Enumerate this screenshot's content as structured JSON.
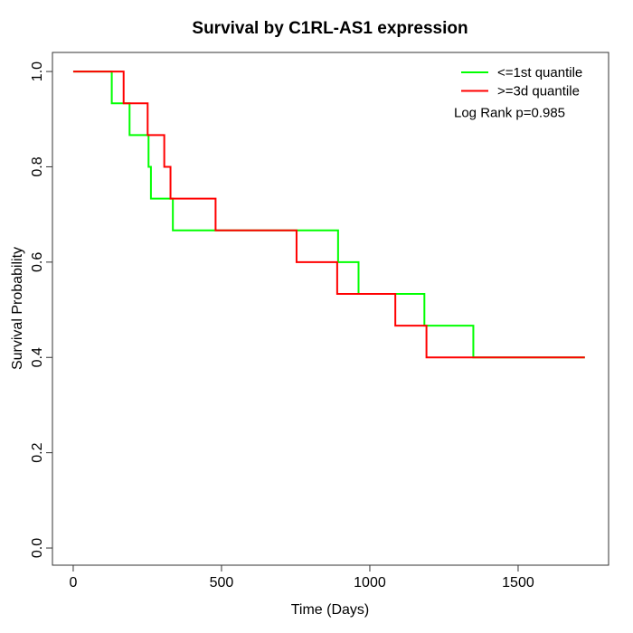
{
  "chart_data": {
    "type": "line",
    "subtype": "kaplan-meier-step",
    "title": "Survival by C1RL-AS1 expression",
    "xlabel": "Time (Days)",
    "ylabel": "Survival Probability",
    "xticks": [
      0,
      500,
      1000,
      1500
    ],
    "xtick_labels": [
      "0",
      "500",
      "1000",
      "1500"
    ],
    "yticks": [
      0.0,
      0.2,
      0.4,
      0.6,
      0.8,
      1.0
    ],
    "ytick_labels": [
      "0.0",
      "0.2",
      "0.4",
      "0.6",
      "0.8",
      "1.0"
    ],
    "xlim": [
      -70,
      1805
    ],
    "ylim": [
      -0.036,
      1.04
    ],
    "grid": false,
    "legend_position": "top-right",
    "annotation": "Log Rank p=0.985",
    "axis_color": "#333333",
    "series": [
      {
        "name": "<=1st quantile",
        "color": "#00ff00",
        "start": [
          0,
          1.0
        ],
        "steps": [
          [
            130,
            0.9333
          ],
          [
            190,
            0.8667
          ],
          [
            254,
            0.8
          ],
          [
            262,
            0.7333
          ],
          [
            336,
            0.6667
          ],
          [
            893,
            0.6
          ],
          [
            962,
            0.5333
          ],
          [
            1184,
            0.4667
          ],
          [
            1349,
            0.4
          ]
        ],
        "end_time": 1725
      },
      {
        "name": ">=3d quantile",
        "color": "#ff0000",
        "start": [
          0,
          1.0
        ],
        "steps": [
          [
            170,
            0.9333
          ],
          [
            251,
            0.8667
          ],
          [
            307,
            0.8
          ],
          [
            328,
            0.7333
          ],
          [
            480,
            0.6667
          ],
          [
            753,
            0.6
          ],
          [
            890,
            0.5333
          ],
          [
            1086,
            0.4667
          ],
          [
            1191,
            0.4
          ]
        ],
        "end_time": 1725
      }
    ]
  }
}
